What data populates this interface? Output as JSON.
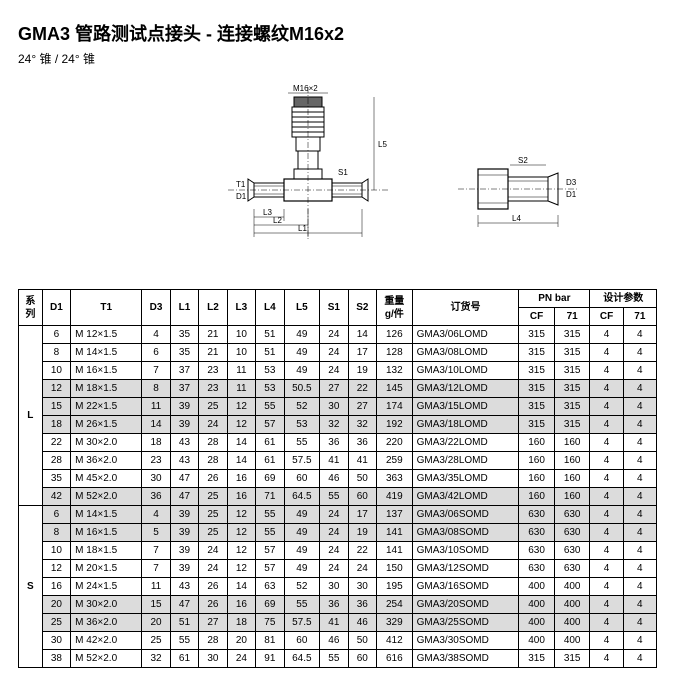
{
  "header": {
    "title": "GMA3   管路测试点接头 - 连接螺纹M16x2",
    "subtitle": "24° 锥 / 24° 锥"
  },
  "diagram": {
    "labels": {
      "m16": "M16×2",
      "t1": "T1",
      "d1": "D1",
      "d3": "D3",
      "s1": "S1",
      "s2": "S2",
      "l1": "L1",
      "l2": "L2",
      "l3": "L3",
      "l4": "L4",
      "l5": "L5"
    }
  },
  "table": {
    "headers": {
      "series": "系\n列",
      "d1": "D1",
      "t1": "T1",
      "d3": "D3",
      "l1": "L1",
      "l2": "L2",
      "l3": "L3",
      "l4": "L4",
      "l5": "L5",
      "s1": "S1",
      "s2": "S2",
      "wt": "重量\ng/件",
      "part": "订货号",
      "pn": "PN bar",
      "dp": "设计参数",
      "cf": "CF",
      "c71": "71"
    },
    "rowsL": [
      {
        "d1": "6",
        "t1": "M 12×1.5",
        "d3": "4",
        "l1": "35",
        "l2": "21",
        "l3": "10",
        "l4": "51",
        "l5": "49",
        "s1": "24",
        "s2": "14",
        "wt": "126",
        "part": "GMA3/06LOMD",
        "pnCF": "315",
        "pn71": "315",
        "dpCF": "4",
        "dp71": "4",
        "g": 0
      },
      {
        "d1": "8",
        "t1": "M 14×1.5",
        "d3": "6",
        "l1": "35",
        "l2": "21",
        "l3": "10",
        "l4": "51",
        "l5": "49",
        "s1": "24",
        "s2": "17",
        "wt": "128",
        "part": "GMA3/08LOMD",
        "pnCF": "315",
        "pn71": "315",
        "dpCF": "4",
        "dp71": "4",
        "g": 0
      },
      {
        "d1": "10",
        "t1": "M 16×1.5",
        "d3": "7",
        "l1": "37",
        "l2": "23",
        "l3": "11",
        "l4": "53",
        "l5": "49",
        "s1": "24",
        "s2": "19",
        "wt": "132",
        "part": "GMA3/10LOMD",
        "pnCF": "315",
        "pn71": "315",
        "dpCF": "4",
        "dp71": "4",
        "g": 0
      },
      {
        "d1": "12",
        "t1": "M 18×1.5",
        "d3": "8",
        "l1": "37",
        "l2": "23",
        "l3": "11",
        "l4": "53",
        "l5": "50.5",
        "s1": "27",
        "s2": "22",
        "wt": "145",
        "part": "GMA3/12LOMD",
        "pnCF": "315",
        "pn71": "315",
        "dpCF": "4",
        "dp71": "4",
        "g": 1
      },
      {
        "d1": "15",
        "t1": "M 22×1.5",
        "d3": "11",
        "l1": "39",
        "l2": "25",
        "l3": "12",
        "l4": "55",
        "l5": "52",
        "s1": "30",
        "s2": "27",
        "wt": "174",
        "part": "GMA3/15LOMD",
        "pnCF": "315",
        "pn71": "315",
        "dpCF": "4",
        "dp71": "4",
        "g": 1
      },
      {
        "d1": "18",
        "t1": "M 26×1.5",
        "d3": "14",
        "l1": "39",
        "l2": "24",
        "l3": "12",
        "l4": "57",
        "l5": "53",
        "s1": "32",
        "s2": "32",
        "wt": "192",
        "part": "GMA3/18LOMD",
        "pnCF": "315",
        "pn71": "315",
        "dpCF": "4",
        "dp71": "4",
        "g": 1
      },
      {
        "d1": "22",
        "t1": "M 30×2.0",
        "d3": "18",
        "l1": "43",
        "l2": "28",
        "l3": "14",
        "l4": "61",
        "l5": "55",
        "s1": "36",
        "s2": "36",
        "wt": "220",
        "part": "GMA3/22LOMD",
        "pnCF": "160",
        "pn71": "160",
        "dpCF": "4",
        "dp71": "4",
        "g": 0
      },
      {
        "d1": "28",
        "t1": "M 36×2.0",
        "d3": "23",
        "l1": "43",
        "l2": "28",
        "l3": "14",
        "l4": "61",
        "l5": "57.5",
        "s1": "41",
        "s2": "41",
        "wt": "259",
        "part": "GMA3/28LOMD",
        "pnCF": "160",
        "pn71": "160",
        "dpCF": "4",
        "dp71": "4",
        "g": 0
      },
      {
        "d1": "35",
        "t1": "M 45×2.0",
        "d3": "30",
        "l1": "47",
        "l2": "26",
        "l3": "16",
        "l4": "69",
        "l5": "60",
        "s1": "46",
        "s2": "50",
        "wt": "363",
        "part": "GMA3/35LOMD",
        "pnCF": "160",
        "pn71": "160",
        "dpCF": "4",
        "dp71": "4",
        "g": 0
      },
      {
        "d1": "42",
        "t1": "M 52×2.0",
        "d3": "36",
        "l1": "47",
        "l2": "25",
        "l3": "16",
        "l4": "71",
        "l5": "64.5",
        "s1": "55",
        "s2": "60",
        "wt": "419",
        "part": "GMA3/42LOMD",
        "pnCF": "160",
        "pn71": "160",
        "dpCF": "4",
        "dp71": "4",
        "g": 1
      }
    ],
    "rowsS": [
      {
        "d1": "6",
        "t1": "M 14×1.5",
        "d3": "4",
        "l1": "39",
        "l2": "25",
        "l3": "12",
        "l4": "55",
        "l5": "49",
        "s1": "24",
        "s2": "17",
        "wt": "137",
        "part": "GMA3/06SOMD",
        "pnCF": "630",
        "pn71": "630",
        "dpCF": "4",
        "dp71": "4",
        "g": 1
      },
      {
        "d1": "8",
        "t1": "M 16×1.5",
        "d3": "5",
        "l1": "39",
        "l2": "25",
        "l3": "12",
        "l4": "55",
        "l5": "49",
        "s1": "24",
        "s2": "19",
        "wt": "141",
        "part": "GMA3/08SOMD",
        "pnCF": "630",
        "pn71": "630",
        "dpCF": "4",
        "dp71": "4",
        "g": 1
      },
      {
        "d1": "10",
        "t1": "M 18×1.5",
        "d3": "7",
        "l1": "39",
        "l2": "24",
        "l3": "12",
        "l4": "57",
        "l5": "49",
        "s1": "24",
        "s2": "22",
        "wt": "141",
        "part": "GMA3/10SOMD",
        "pnCF": "630",
        "pn71": "630",
        "dpCF": "4",
        "dp71": "4",
        "g": 0
      },
      {
        "d1": "12",
        "t1": "M 20×1.5",
        "d3": "7",
        "l1": "39",
        "l2": "24",
        "l3": "12",
        "l4": "57",
        "l5": "49",
        "s1": "24",
        "s2": "24",
        "wt": "150",
        "part": "GMA3/12SOMD",
        "pnCF": "630",
        "pn71": "630",
        "dpCF": "4",
        "dp71": "4",
        "g": 0
      },
      {
        "d1": "16",
        "t1": "M 24×1.5",
        "d3": "11",
        "l1": "43",
        "l2": "26",
        "l3": "14",
        "l4": "63",
        "l5": "52",
        "s1": "30",
        "s2": "30",
        "wt": "195",
        "part": "GMA3/16SOMD",
        "pnCF": "400",
        "pn71": "400",
        "dpCF": "4",
        "dp71": "4",
        "g": 0
      },
      {
        "d1": "20",
        "t1": "M 30×2.0",
        "d3": "15",
        "l1": "47",
        "l2": "26",
        "l3": "16",
        "l4": "69",
        "l5": "55",
        "s1": "36",
        "s2": "36",
        "wt": "254",
        "part": "GMA3/20SOMD",
        "pnCF": "400",
        "pn71": "400",
        "dpCF": "4",
        "dp71": "4",
        "g": 1
      },
      {
        "d1": "25",
        "t1": "M 36×2.0",
        "d3": "20",
        "l1": "51",
        "l2": "27",
        "l3": "18",
        "l4": "75",
        "l5": "57.5",
        "s1": "41",
        "s2": "46",
        "wt": "329",
        "part": "GMA3/25SOMD",
        "pnCF": "400",
        "pn71": "400",
        "dpCF": "4",
        "dp71": "4",
        "g": 1
      },
      {
        "d1": "30",
        "t1": "M 42×2.0",
        "d3": "25",
        "l1": "55",
        "l2": "28",
        "l3": "20",
        "l4": "81",
        "l5": "60",
        "s1": "46",
        "s2": "50",
        "wt": "412",
        "part": "GMA3/30SOMD",
        "pnCF": "400",
        "pn71": "400",
        "dpCF": "4",
        "dp71": "4",
        "g": 0
      },
      {
        "d1": "38",
        "t1": "M 52×2.0",
        "d3": "32",
        "l1": "61",
        "l2": "30",
        "l3": "24",
        "l4": "91",
        "l5": "64.5",
        "s1": "55",
        "s2": "60",
        "wt": "616",
        "part": "GMA3/38SOMD",
        "pnCF": "315",
        "pn71": "315",
        "dpCF": "4",
        "dp71": "4",
        "g": 0
      }
    ]
  }
}
